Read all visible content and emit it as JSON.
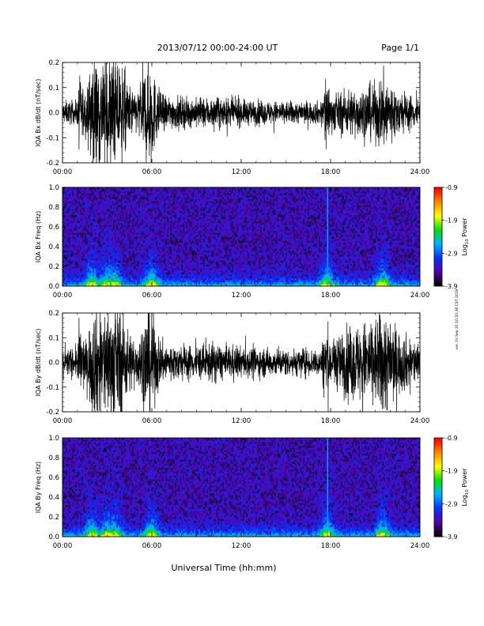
{
  "header": {
    "title": "2013/07/12  00:00-24:00 UT",
    "page": "Page 1/1"
  },
  "side_stamp": "ver. Fri Sep 20 10:20:36 CST 2019",
  "x_axis": {
    "label": "Universal Time (hh:mm)",
    "ticks": [
      "00:00",
      "06:00",
      "12:00",
      "18:00",
      "24:00"
    ],
    "range_hours": [
      0,
      24
    ]
  },
  "colorbar": {
    "label": "Log10 Power",
    "label_main": "Log",
    "label_sub": "10",
    "label_tail": " Power",
    "ticks": [
      "-0.9",
      "-1.9",
      "-2.9",
      "-3.9"
    ],
    "range": [
      -3.9,
      -0.9
    ],
    "palette": [
      "#000000",
      "#5a00a8",
      "#0033ff",
      "#00b4ff",
      "#00e000",
      "#ffff00",
      "#ff8800",
      "#ff0000"
    ]
  },
  "colors": {
    "spectrogram_background": "#2a0a6e",
    "trace": "#000000"
  },
  "chart_data": [
    {
      "type": "line",
      "ylabel": "IQA Bx dB/dt (nT/sec)",
      "ylim": [
        -0.2,
        0.2
      ],
      "yticks": [
        "0.2",
        "0.1",
        "0.0",
        "-0.1",
        "-0.2"
      ],
      "x_unit": "hours UT",
      "amplitude_envelope": {
        "x": [
          0,
          1.0,
          1.1,
          1.6,
          2.0,
          2.4,
          3.0,
          3.3,
          3.6,
          4.0,
          4.4,
          5.0,
          5.7,
          6.0,
          6.2,
          6.6,
          7.0,
          9.0,
          10.0,
          12.0,
          14.0,
          16.0,
          17.4,
          17.7,
          18.0,
          18.5,
          19.0,
          20.0,
          21.0,
          21.6,
          22.0,
          22.5,
          23.0,
          24.0
        ],
        "y": [
          0.04,
          0.04,
          0.14,
          0.06,
          0.2,
          0.2,
          0.2,
          0.2,
          0.2,
          0.18,
          0.1,
          0.07,
          0.2,
          0.2,
          0.12,
          0.07,
          0.06,
          0.05,
          0.055,
          0.045,
          0.04,
          0.04,
          0.04,
          0.16,
          0.06,
          0.07,
          0.08,
          0.09,
          0.1,
          0.14,
          0.12,
          0.08,
          0.07,
          0.05
        ]
      }
    },
    {
      "type": "heatmap",
      "ylabel": "IQA Bx Freq (Hz)",
      "ylim": [
        0,
        1.0
      ],
      "yticks": [
        "1.0",
        "0.8",
        "0.6",
        "0.4",
        "0.2",
        "0.0"
      ],
      "zrange": [
        -3.9,
        -0.9
      ],
      "activity_hours": [
        2.0,
        3.0,
        3.5,
        6.0,
        17.8,
        21.5
      ],
      "vertical_lines_hours": [
        17.8
      ]
    },
    {
      "type": "line",
      "ylabel": "IQA By dB/dt (nT/sec)",
      "ylim": [
        -0.2,
        0.2
      ],
      "yticks": [
        "0.2",
        "0.1",
        "0.0",
        "-0.1",
        "-0.2"
      ],
      "x_unit": "hours UT",
      "amplitude_envelope": {
        "x": [
          0,
          1.0,
          1.1,
          1.6,
          2.0,
          2.4,
          3.0,
          3.3,
          3.6,
          4.0,
          4.4,
          5.0,
          5.7,
          6.0,
          6.2,
          6.6,
          7.0,
          9.0,
          10.0,
          12.0,
          14.0,
          16.0,
          17.4,
          17.7,
          18.0,
          18.5,
          19.0,
          20.0,
          21.0,
          21.6,
          22.0,
          22.5,
          23.0,
          24.0
        ],
        "y": [
          0.05,
          0.05,
          0.15,
          0.07,
          0.2,
          0.2,
          0.2,
          0.2,
          0.2,
          0.2,
          0.12,
          0.08,
          0.2,
          0.2,
          0.14,
          0.08,
          0.07,
          0.06,
          0.07,
          0.055,
          0.05,
          0.05,
          0.05,
          0.18,
          0.08,
          0.1,
          0.12,
          0.14,
          0.16,
          0.2,
          0.16,
          0.12,
          0.1,
          0.07
        ]
      }
    },
    {
      "type": "heatmap",
      "ylabel": "IQA By Freq (Hz)",
      "ylim": [
        0,
        1.0
      ],
      "yticks": [
        "1.0",
        "0.8",
        "0.6",
        "0.4",
        "0.2",
        "0.0"
      ],
      "zrange": [
        -3.9,
        -0.9
      ],
      "activity_hours": [
        2.0,
        3.0,
        3.5,
        6.0,
        17.8,
        21.5
      ],
      "vertical_lines_hours": [
        17.8
      ]
    }
  ]
}
